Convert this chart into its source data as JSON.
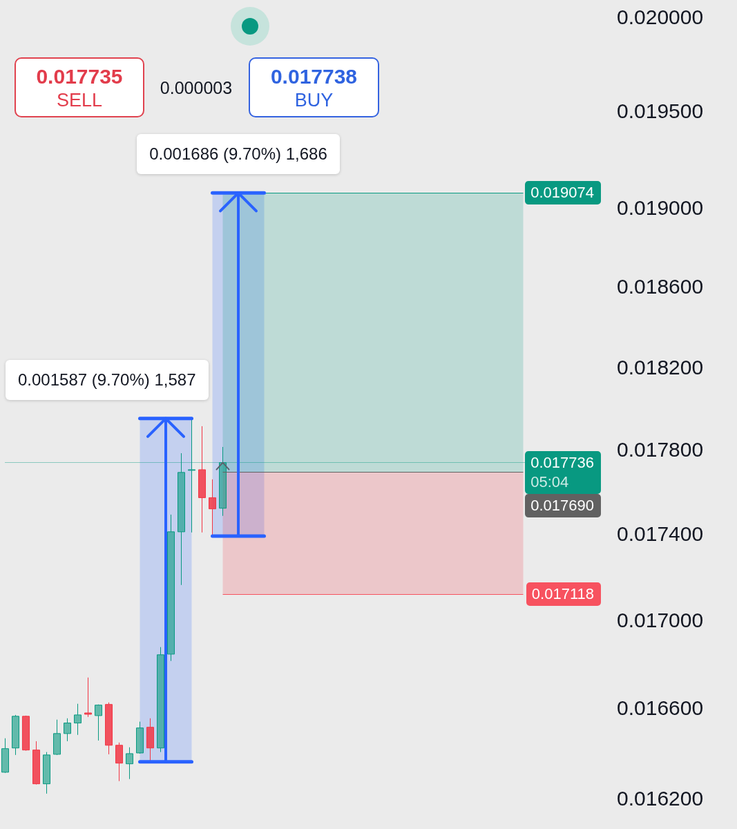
{
  "chart_data": {
    "type": "candlestick",
    "categories": [
      null,
      null,
      null,
      null,
      null,
      null,
      null,
      null,
      null,
      null,
      null,
      null,
      null,
      null,
      null,
      null,
      null,
      null,
      null,
      null,
      null,
      null,
      null,
      null,
      null,
      null,
      null,
      null,
      null,
      null,
      null,
      null,
      null,
      null,
      null,
      null,
      null,
      null,
      null,
      null,
      null,
      null,
      null,
      null,
      null,
      null,
      null,
      null,
      null,
      null,
      null,
      null,
      null,
      null,
      null,
      null,
      null,
      null
    ],
    "ohlc": [
      [
        0.016315,
        0.016465,
        0.016312,
        0.016419
      ],
      [
        0.016422,
        0.016569,
        0.016391,
        0.016563
      ],
      [
        0.016563,
        0.016566,
        0.01641,
        0.016413
      ],
      [
        0.016413,
        0.016452,
        0.016261,
        0.016264
      ],
      [
        0.016264,
        0.016404,
        0.016221,
        0.016391
      ],
      [
        0.016394,
        0.016548,
        0.016391,
        0.016486
      ],
      [
        0.016486,
        0.016554,
        0.016452,
        0.016533
      ],
      [
        0.016533,
        0.016619,
        0.01648,
        0.016569
      ],
      [
        0.016578,
        0.016737,
        0.01656,
        0.016572
      ],
      [
        0.016566,
        0.016616,
        0.016455,
        0.016613
      ],
      [
        0.016616,
        0.016625,
        0.016394,
        0.016434
      ],
      [
        0.016434,
        0.016446,
        0.016276,
        0.016355
      ],
      [
        0.016352,
        0.016425,
        0.016285,
        0.016397
      ],
      [
        0.0164,
        0.016539,
        0.016397,
        0.016511
      ],
      [
        0.016514,
        0.016554,
        0.016361,
        0.016422
      ],
      [
        0.016422,
        0.016875,
        0.016404,
        0.01684
      ],
      [
        0.016843,
        0.017489,
        0.016812,
        0.017408
      ],
      [
        0.017408,
        0.017781,
        0.01716,
        0.017689
      ],
      [
        0.017699,
        0.017948,
        0.017405,
        0.017702
      ],
      [
        0.017702,
        0.017911,
        0.017405,
        0.017569
      ],
      [
        0.017569,
        0.017656,
        0.017388,
        0.017516
      ],
      [
        0.017519,
        0.017811,
        0.017483,
        0.017736
      ],
      null,
      null,
      null,
      null,
      null,
      null,
      null,
      null,
      null,
      null,
      null,
      null,
      null,
      null,
      null,
      null,
      null,
      null,
      null,
      null,
      null,
      null,
      null,
      null,
      null,
      null,
      null,
      null,
      null,
      null,
      null,
      null,
      null,
      null,
      null,
      null
    ],
    "colors": [
      "#089981",
      "#089981",
      "#f23645",
      "#f23645",
      "#089981",
      "#089981",
      "#089981",
      "#089981",
      "#f23645",
      "#089981",
      "#f23645",
      "#f23645",
      "#089981",
      "#089981",
      "#f23645",
      "#089981",
      "#089981",
      "#089981",
      "#089981",
      "#f23645",
      "#f23645",
      "#089981",
      null,
      null,
      null,
      null,
      null,
      null,
      null,
      null,
      null,
      null,
      null,
      null,
      null,
      null,
      null,
      null,
      null,
      null,
      null,
      null,
      null,
      null,
      null,
      null,
      null,
      null,
      null,
      null,
      null,
      null,
      null,
      null,
      null,
      null,
      null,
      null
    ],
    "ylim": [
      0.016067,
      0.020093
    ],
    "yticks": [
      {
        "value": 0.0162,
        "label": "0.016200"
      },
      {
        "value": 0.0166,
        "label": "0.016600"
      },
      {
        "value": 0.017,
        "label": "0.017000"
      },
      {
        "value": 0.0174,
        "label": "0.017400"
      },
      {
        "value": 0.0178,
        "label": "0.017800"
      },
      {
        "value": 0.0182,
        "label": "0.018200"
      },
      {
        "value": 0.0186,
        "label": "0.018600"
      },
      {
        "value": 0.019,
        "label": "0.019000"
      },
      {
        "value": 0.0195,
        "label": "0.019500"
      },
      {
        "value": 0.02,
        "label": "0.020000"
      }
    ],
    "log": "y",
    "tick_labels": "y",
    "ref_lines": [
      {
        "axis": "y",
        "value": 0.019074,
        "label": "0.019074",
        "color": "#089981"
      },
      {
        "axis": "y",
        "value": 0.017736,
        "label": "0.017736\n05:04",
        "color": "#089981",
        "line_style": "dotted"
      },
      {
        "axis": "y",
        "value": 0.01769,
        "label": "0.017690",
        "color": "#616161"
      },
      {
        "axis": "y",
        "value": 0.017118,
        "label": "0.017118",
        "color": "#f7525f"
      }
    ],
    "bands": [
      {
        "axis": "y",
        "from": 0.016361,
        "to": 0.017948,
        "label": "0.001587 (9.70%) 1,587",
        "color": "#2962ff"
      },
      {
        "axis": "y",
        "from": 0.017388,
        "to": 0.019074,
        "label": "0.001686 (9.70%) 1,686",
        "color": "#2962ff"
      },
      {
        "axis": "y",
        "from": 0.01769,
        "to": 0.019074,
        "color": "#089981"
      },
      {
        "axis": "y",
        "from": 0.017118,
        "to": 0.01769,
        "color": "#f23645"
      }
    ],
    "annotations": [
      "0.017735",
      "SELL",
      "0.000003",
      "0.017738",
      "BUY"
    ]
  }
}
